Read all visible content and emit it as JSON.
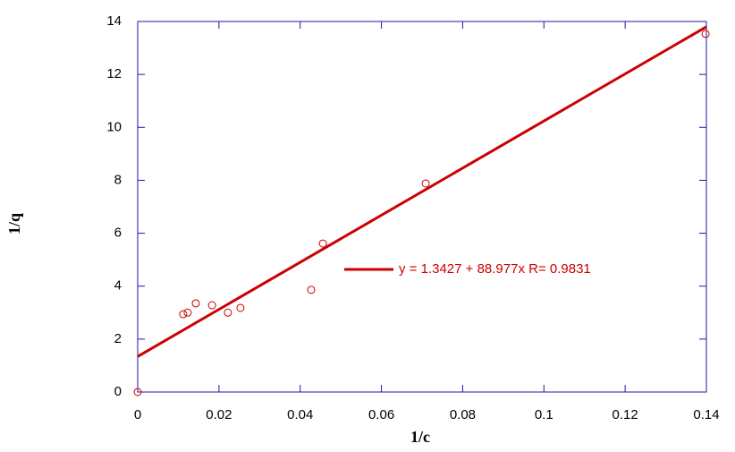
{
  "chart_data": {
    "type": "scatter",
    "x_label": "1/c",
    "y_label": "1/q",
    "xlim": [
      0,
      0.14
    ],
    "ylim": [
      0,
      14
    ],
    "xticks": [
      0,
      0.02,
      0.04,
      0.06,
      0.08,
      0.1,
      0.12,
      0.14
    ],
    "yticks": [
      0,
      2,
      4,
      6,
      8,
      10,
      12,
      14
    ],
    "series": [
      {
        "color": "#cc0000",
        "x": [
          0,
          0.0112,
          0.0123,
          0.0143,
          0.0183,
          0.0222,
          0.0253,
          0.0427,
          0.0456,
          0.0709,
          0.1398
        ],
        "values": [
          0,
          2.94,
          3.0,
          3.35,
          3.28,
          3.0,
          3.18,
          3.86,
          5.61,
          7.88,
          13.53
        ]
      }
    ],
    "fit_line": {
      "name": "y = 1.3427 + 88.977x R= 0.9831",
      "color": "#cc0000",
      "x": [
        0,
        0.14
      ],
      "values": [
        1.3427,
        13.7995
      ]
    },
    "frame_color": "#1a1aa6"
  }
}
